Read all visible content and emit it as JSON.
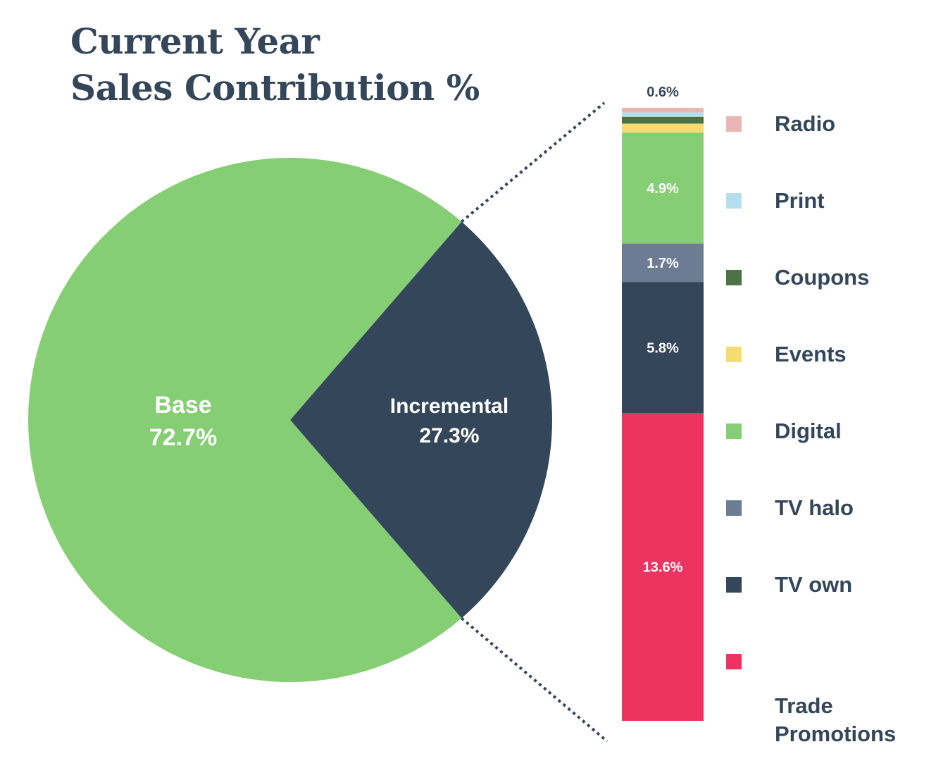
{
  "title_lines": [
    "Current Year",
    "Sales Contribution %"
  ],
  "colors": {
    "base": "#85ce74",
    "incremental": "#34465a",
    "radio": "#eab5b5",
    "print": "#b6dfee",
    "coupons": "#4d7246",
    "events": "#f5dc6e",
    "digital": "#85ce74",
    "tv_halo": "#6c7c93",
    "tv_own": "#34465a",
    "trade_promotions": "#ef3360",
    "title": "#34465a",
    "connector": "#34465a"
  },
  "chart_data": {
    "type": "pie",
    "title": "Current Year Sales Contribution %",
    "pie": {
      "slices": [
        {
          "name": "Base",
          "value": 72.7,
          "label": "72.7%",
          "color": "#85ce74"
        },
        {
          "name": "Incremental",
          "value": 27.3,
          "label": "27.3%",
          "color": "#34465a"
        }
      ]
    },
    "breakdown": {
      "type": "stacked-bar",
      "of_slice": "Incremental",
      "segments": [
        {
          "name": "Radio",
          "value": 0.2,
          "label": "",
          "color": "#eab5b5"
        },
        {
          "name": "Print",
          "value": 0.2,
          "label": "",
          "color": "#b6dfee"
        },
        {
          "name": "Coupons",
          "value": 0.3,
          "label": "",
          "color": "#4d7246"
        },
        {
          "name": "Events",
          "value": 0.4,
          "label": "",
          "color": "#f5dc6e"
        },
        {
          "name": "Digital",
          "value": 4.9,
          "label": "4.9%",
          "color": "#85ce74"
        },
        {
          "name": "TV halo",
          "value": 1.7,
          "label": "1.7%",
          "color": "#6c7c93"
        },
        {
          "name": "TV own",
          "value": 5.8,
          "label": "5.8%",
          "color": "#34465a"
        },
        {
          "name": "Trade Promotions",
          "value": 13.6,
          "label": "13.6%",
          "color": "#ef3360"
        }
      ],
      "top_annotation": "0.6%"
    },
    "legend": [
      {
        "lines": [
          "Radio"
        ],
        "color": "#eab5b5"
      },
      {
        "lines": [
          "Print"
        ],
        "color": "#b6dfee"
      },
      {
        "lines": [
          "Coupons"
        ],
        "color": "#4d7246"
      },
      {
        "lines": [
          "Events"
        ],
        "color": "#f5dc6e"
      },
      {
        "lines": [
          "Digital"
        ],
        "color": "#85ce74"
      },
      {
        "lines": [
          "TV halo"
        ],
        "color": "#6c7c93"
      },
      {
        "lines": [
          "TV own"
        ],
        "color": "#34465a"
      },
      {
        "lines": [
          "Trade",
          "Promotions"
        ],
        "color": "#ef3360"
      }
    ]
  }
}
